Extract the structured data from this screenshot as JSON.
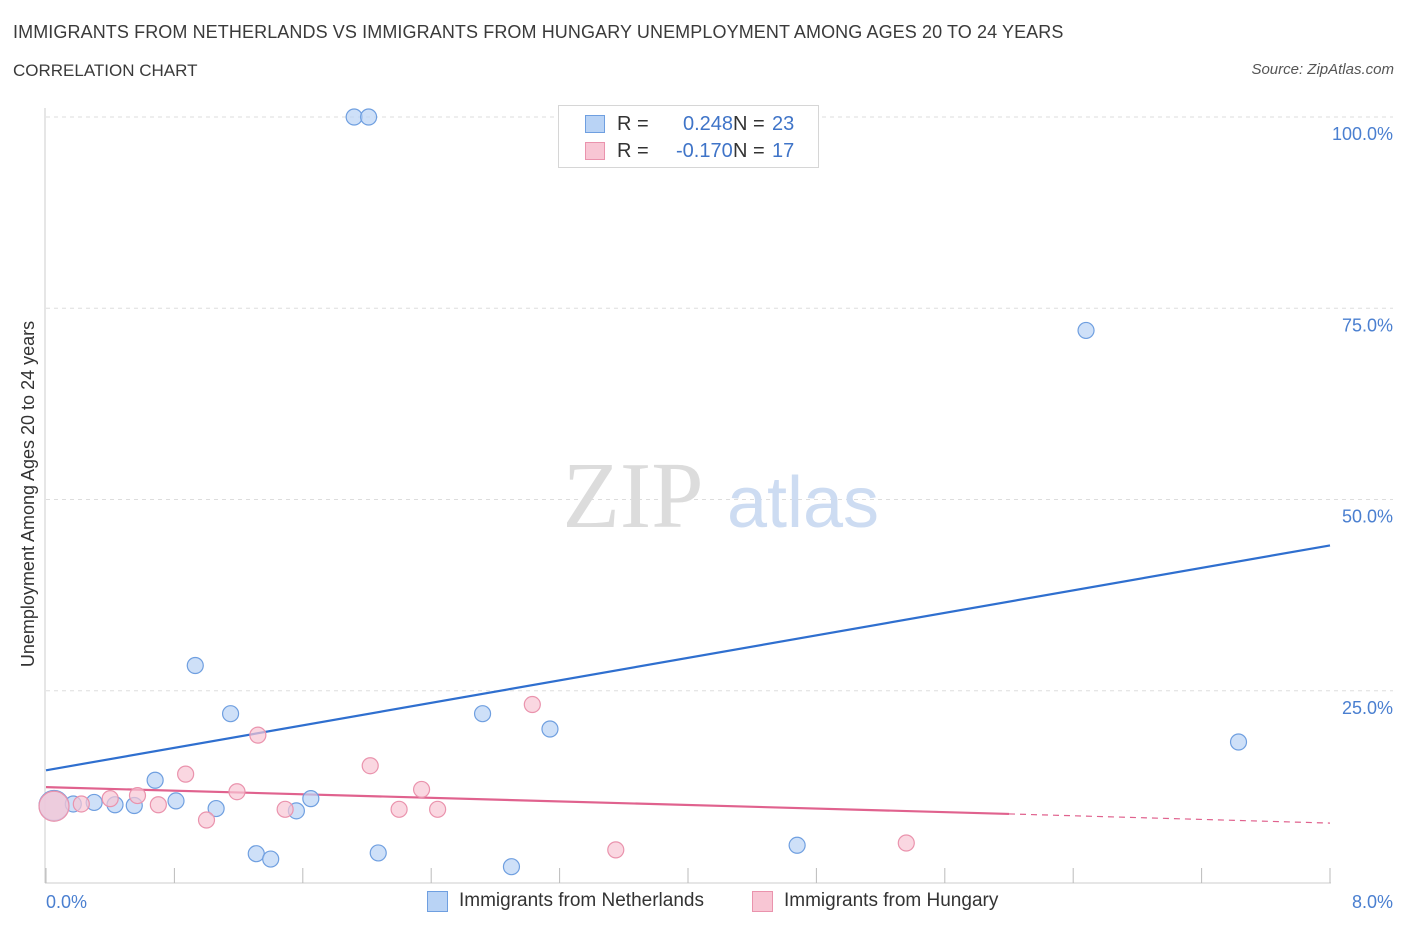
{
  "header": {
    "title": "IMMIGRANTS FROM NETHERLANDS VS IMMIGRANTS FROM HUNGARY UNEMPLOYMENT AMONG AGES 20 TO 24 YEARS",
    "subtitle": "CORRELATION CHART",
    "source": "Source: ZipAtlas.com"
  },
  "watermark": {
    "zip": "ZIP",
    "atlas": "atlas"
  },
  "legend": {
    "r_label": "R =",
    "n_label": "N =",
    "rows": [
      {
        "r": "0.248",
        "n": "23"
      },
      {
        "r": "-0.170",
        "n": "17"
      }
    ]
  },
  "colors": {
    "netherlands_fill": "#b9d3f5",
    "netherlands_stroke": "#6f9fe0",
    "netherlands_line": "#2f6fcf",
    "hungary_fill": "#f8c6d4",
    "hungary_stroke": "#ea93ad",
    "hungary_line": "#e0628e",
    "grid": "#dddddd",
    "tick_text": "#4a7fd0"
  },
  "chart_data": {
    "type": "scatter",
    "title": "IMMIGRANTS FROM NETHERLANDS VS IMMIGRANTS FROM HUNGARY UNEMPLOYMENT AMONG AGES 20 TO 24 YEARS",
    "xlabel": "",
    "ylabel": "Unemployment Among Ages 20 to 24 years",
    "xlim": [
      0,
      8
    ],
    "ylim": [
      0,
      100
    ],
    "x_tick_labels": [
      "0.0%",
      "8.0%"
    ],
    "y_ticks": [
      25,
      50,
      75,
      100
    ],
    "y_tick_labels": [
      "25.0%",
      "50.0%",
      "75.0%",
      "100.0%"
    ],
    "series": [
      {
        "name": "Immigrants from Netherlands",
        "points": [
          {
            "x": 0.05,
            "y": 10.0,
            "big": true
          },
          {
            "x": 0.17,
            "y": 10.2
          },
          {
            "x": 0.3,
            "y": 10.4
          },
          {
            "x": 0.43,
            "y": 10.1
          },
          {
            "x": 0.55,
            "y": 10.0
          },
          {
            "x": 0.68,
            "y": 13.3
          },
          {
            "x": 0.81,
            "y": 10.6
          },
          {
            "x": 0.93,
            "y": 28.3
          },
          {
            "x": 1.06,
            "y": 9.6
          },
          {
            "x": 1.15,
            "y": 22.0
          },
          {
            "x": 1.31,
            "y": 3.7
          },
          {
            "x": 1.4,
            "y": 3.0
          },
          {
            "x": 1.56,
            "y": 9.3
          },
          {
            "x": 1.65,
            "y": 10.9
          },
          {
            "x": 1.92,
            "y": 100.0
          },
          {
            "x": 2.01,
            "y": 100.0
          },
          {
            "x": 2.07,
            "y": 3.8
          },
          {
            "x": 2.72,
            "y": 22.0
          },
          {
            "x": 2.9,
            "y": 2.0
          },
          {
            "x": 3.14,
            "y": 20.0
          },
          {
            "x": 4.68,
            "y": 4.8
          },
          {
            "x": 6.48,
            "y": 72.1
          },
          {
            "x": 7.43,
            "y": 18.3
          }
        ],
        "trend": {
          "x": [
            0,
            8
          ],
          "y": [
            14.6,
            44.0
          ]
        }
      },
      {
        "name": "Immigrants from Hungary",
        "points": [
          {
            "x": 0.05,
            "y": 9.9,
            "big": true
          },
          {
            "x": 0.22,
            "y": 10.2
          },
          {
            "x": 0.4,
            "y": 10.9
          },
          {
            "x": 0.57,
            "y": 11.3
          },
          {
            "x": 0.7,
            "y": 10.1
          },
          {
            "x": 0.87,
            "y": 14.1
          },
          {
            "x": 1.0,
            "y": 8.1
          },
          {
            "x": 1.19,
            "y": 11.8
          },
          {
            "x": 1.32,
            "y": 19.2
          },
          {
            "x": 1.49,
            "y": 9.5
          },
          {
            "x": 2.02,
            "y": 15.2
          },
          {
            "x": 2.2,
            "y": 9.5
          },
          {
            "x": 2.34,
            "y": 12.1
          },
          {
            "x": 2.44,
            "y": 9.5
          },
          {
            "x": 3.03,
            "y": 23.2
          },
          {
            "x": 3.55,
            "y": 4.2
          },
          {
            "x": 5.36,
            "y": 5.1
          }
        ],
        "trend": {
          "x": [
            0,
            6.0
          ],
          "y": [
            12.4,
            8.9
          ]
        },
        "trend_extension": {
          "x": [
            6.0,
            8
          ],
          "y": [
            8.9,
            7.7
          ]
        }
      }
    ]
  },
  "bottom_legend": [
    {
      "label": "Immigrants from Netherlands"
    },
    {
      "label": "Immigrants from Hungary"
    }
  ]
}
